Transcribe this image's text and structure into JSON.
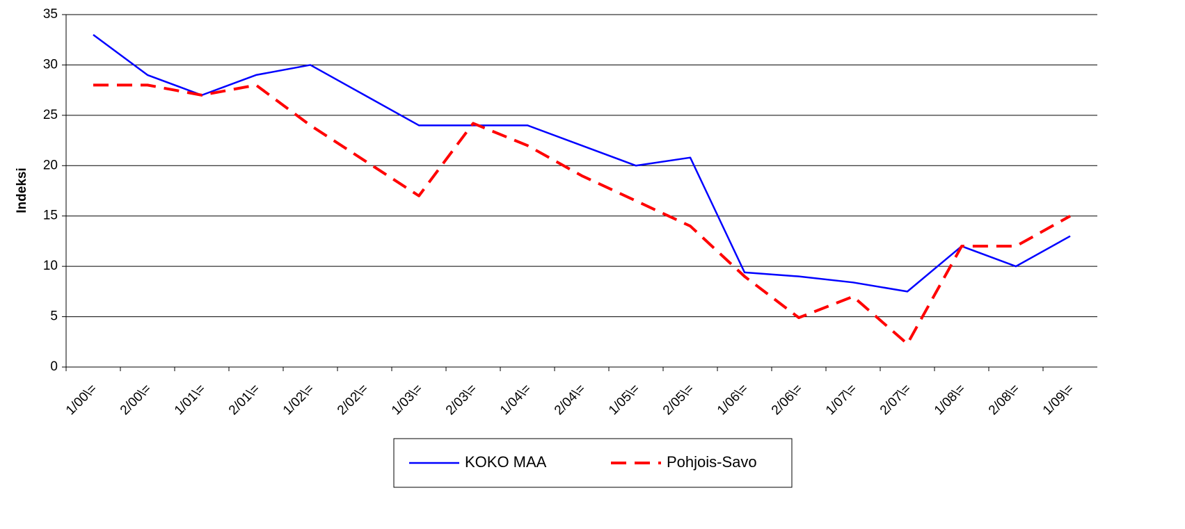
{
  "chart_data": {
    "type": "line",
    "y_label": "Indeksi",
    "categories": [
      "1/00\\=",
      "2/00\\=",
      "1/01\\=",
      "2/01\\=",
      "1/02\\=",
      "2/02\\=",
      "1/03\\=",
      "2/03\\=",
      "1/04\\=",
      "2/04\\=",
      "1/05\\=",
      "2/05\\=",
      "1/06\\=",
      "2/06\\=",
      "1/07\\=",
      "2/07\\=",
      "1/08\\=",
      "2/08\\=",
      "1/09\\="
    ],
    "series": [
      {
        "name": "KOKO MAA",
        "color": "#0000ff",
        "dashed": false,
        "values": [
          33,
          29,
          27,
          29,
          30,
          27,
          24,
          24,
          24,
          22,
          20,
          20.8,
          9.4,
          9,
          8.4,
          7.5,
          12,
          10,
          13
        ]
      },
      {
        "name": "Pohjois-Savo",
        "color": "#ff0000",
        "dashed": true,
        "values": [
          28,
          28,
          27,
          28,
          24,
          20.5,
          17,
          24.2,
          22,
          19,
          16.5,
          14,
          9,
          4.9,
          7,
          2.3,
          12,
          12,
          15
        ]
      }
    ],
    "ylim": [
      0,
      35
    ],
    "yticks": [
      0,
      5,
      10,
      15,
      20,
      25,
      30,
      35
    ],
    "grid": true,
    "legend": "bottom"
  }
}
